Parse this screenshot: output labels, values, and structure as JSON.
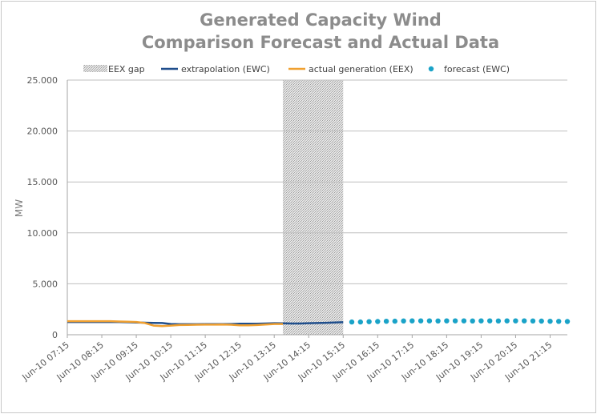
{
  "chart_data": {
    "type": "line",
    "title_line1": "Generated Capacity Wind",
    "title_line2": "Comparison Forecast and Actual Data",
    "ylabel": "MW",
    "ylim": [
      0,
      25000
    ],
    "y_ticks": [
      {
        "value": 0,
        "label": "0"
      },
      {
        "value": 5000,
        "label": "5.000"
      },
      {
        "value": 10000,
        "label": "10.000"
      },
      {
        "value": 15000,
        "label": "15.000"
      },
      {
        "value": 20000,
        "label": "20.000"
      },
      {
        "value": 25000,
        "label": "25.000"
      }
    ],
    "x_labels": [
      "Jun-10 07:15",
      "Jun-10 08:15",
      "Jun-10 09:15",
      "Jun-10 10:15",
      "Jun-10 11:15",
      "Jun-10 12:15",
      "Jun-10 13:15",
      "Jun-10 14:15",
      "Jun-10 15:15",
      "Jun-10 16:15",
      "Jun-10 17:15",
      "Jun-10 18:15",
      "Jun-10 19:15",
      "Jun-10 20:15",
      "Jun-10 21:15"
    ],
    "x_range": [
      "Jun-10 07:15",
      "Jun-10 21:45"
    ],
    "grid": true,
    "legend_position": "top",
    "legend": [
      "EEX gap",
      "extrapolation (EWC)",
      "actual generation (EEX)",
      "forecast (EWC)"
    ],
    "gap": {
      "name": "EEX gap",
      "start": "Jun-10 13:30",
      "end": "Jun-10 15:15"
    },
    "series": [
      {
        "name": "extrapolation (EWC)",
        "style": "line",
        "color": "#1f4e8c",
        "x": [
          "Jun-10 07:15",
          "Jun-10 07:30",
          "Jun-10 07:45",
          "Jun-10 08:00",
          "Jun-10 08:15",
          "Jun-10 08:30",
          "Jun-10 08:45",
          "Jun-10 09:00",
          "Jun-10 09:15",
          "Jun-10 09:30",
          "Jun-10 09:45",
          "Jun-10 10:00",
          "Jun-10 10:15",
          "Jun-10 10:30",
          "Jun-10 10:45",
          "Jun-10 11:00",
          "Jun-10 11:15",
          "Jun-10 11:30",
          "Jun-10 11:45",
          "Jun-10 12:00",
          "Jun-10 12:15",
          "Jun-10 12:30",
          "Jun-10 12:45",
          "Jun-10 13:00",
          "Jun-10 13:15",
          "Jun-10 13:30",
          "Jun-10 13:45",
          "Jun-10 14:00",
          "Jun-10 14:15",
          "Jun-10 14:30",
          "Jun-10 14:45",
          "Jun-10 15:00",
          "Jun-10 15:15"
        ],
        "values": [
          1250,
          1250,
          1250,
          1250,
          1250,
          1250,
          1250,
          1230,
          1200,
          1180,
          1160,
          1150,
          1050,
          1030,
          1030,
          1030,
          1040,
          1040,
          1040,
          1050,
          1080,
          1080,
          1080,
          1100,
          1130,
          1120,
          1100,
          1100,
          1130,
          1150,
          1170,
          1200,
          1230
        ]
      },
      {
        "name": "actual generation (EEX)",
        "style": "line",
        "color": "#f0a030",
        "x": [
          "Jun-10 07:15",
          "Jun-10 07:30",
          "Jun-10 07:45",
          "Jun-10 08:00",
          "Jun-10 08:15",
          "Jun-10 08:30",
          "Jun-10 08:45",
          "Jun-10 09:00",
          "Jun-10 09:15",
          "Jun-10 09:30",
          "Jun-10 09:45",
          "Jun-10 10:00",
          "Jun-10 10:15",
          "Jun-10 10:30",
          "Jun-10 10:45",
          "Jun-10 11:00",
          "Jun-10 11:15",
          "Jun-10 11:30",
          "Jun-10 11:45",
          "Jun-10 12:00",
          "Jun-10 12:15",
          "Jun-10 12:30",
          "Jun-10 12:45",
          "Jun-10 13:00",
          "Jun-10 13:15",
          "Jun-10 13:30"
        ],
        "values": [
          1330,
          1330,
          1330,
          1330,
          1330,
          1330,
          1300,
          1280,
          1250,
          1150,
          900,
          850,
          900,
          950,
          970,
          980,
          990,
          990,
          1000,
          980,
          930,
          920,
          950,
          1000,
          1050,
          1050
        ]
      },
      {
        "name": "forecast (EWC)",
        "style": "dots",
        "color": "#1aa3c8",
        "x": [
          "Jun-10 15:30",
          "Jun-10 15:45",
          "Jun-10 16:00",
          "Jun-10 16:15",
          "Jun-10 16:30",
          "Jun-10 16:45",
          "Jun-10 17:00",
          "Jun-10 17:15",
          "Jun-10 17:30",
          "Jun-10 17:45",
          "Jun-10 18:00",
          "Jun-10 18:15",
          "Jun-10 18:30",
          "Jun-10 18:45",
          "Jun-10 19:00",
          "Jun-10 19:15",
          "Jun-10 19:30",
          "Jun-10 19:45",
          "Jun-10 20:00",
          "Jun-10 20:15",
          "Jun-10 20:30",
          "Jun-10 20:45",
          "Jun-10 21:00",
          "Jun-10 21:15",
          "Jun-10 21:30",
          "Jun-10 21:45"
        ],
        "values": [
          1250,
          1250,
          1280,
          1300,
          1320,
          1330,
          1350,
          1360,
          1360,
          1360,
          1350,
          1360,
          1360,
          1360,
          1350,
          1360,
          1360,
          1350,
          1360,
          1360,
          1360,
          1350,
          1340,
          1320,
          1310,
          1300
        ]
      }
    ]
  }
}
